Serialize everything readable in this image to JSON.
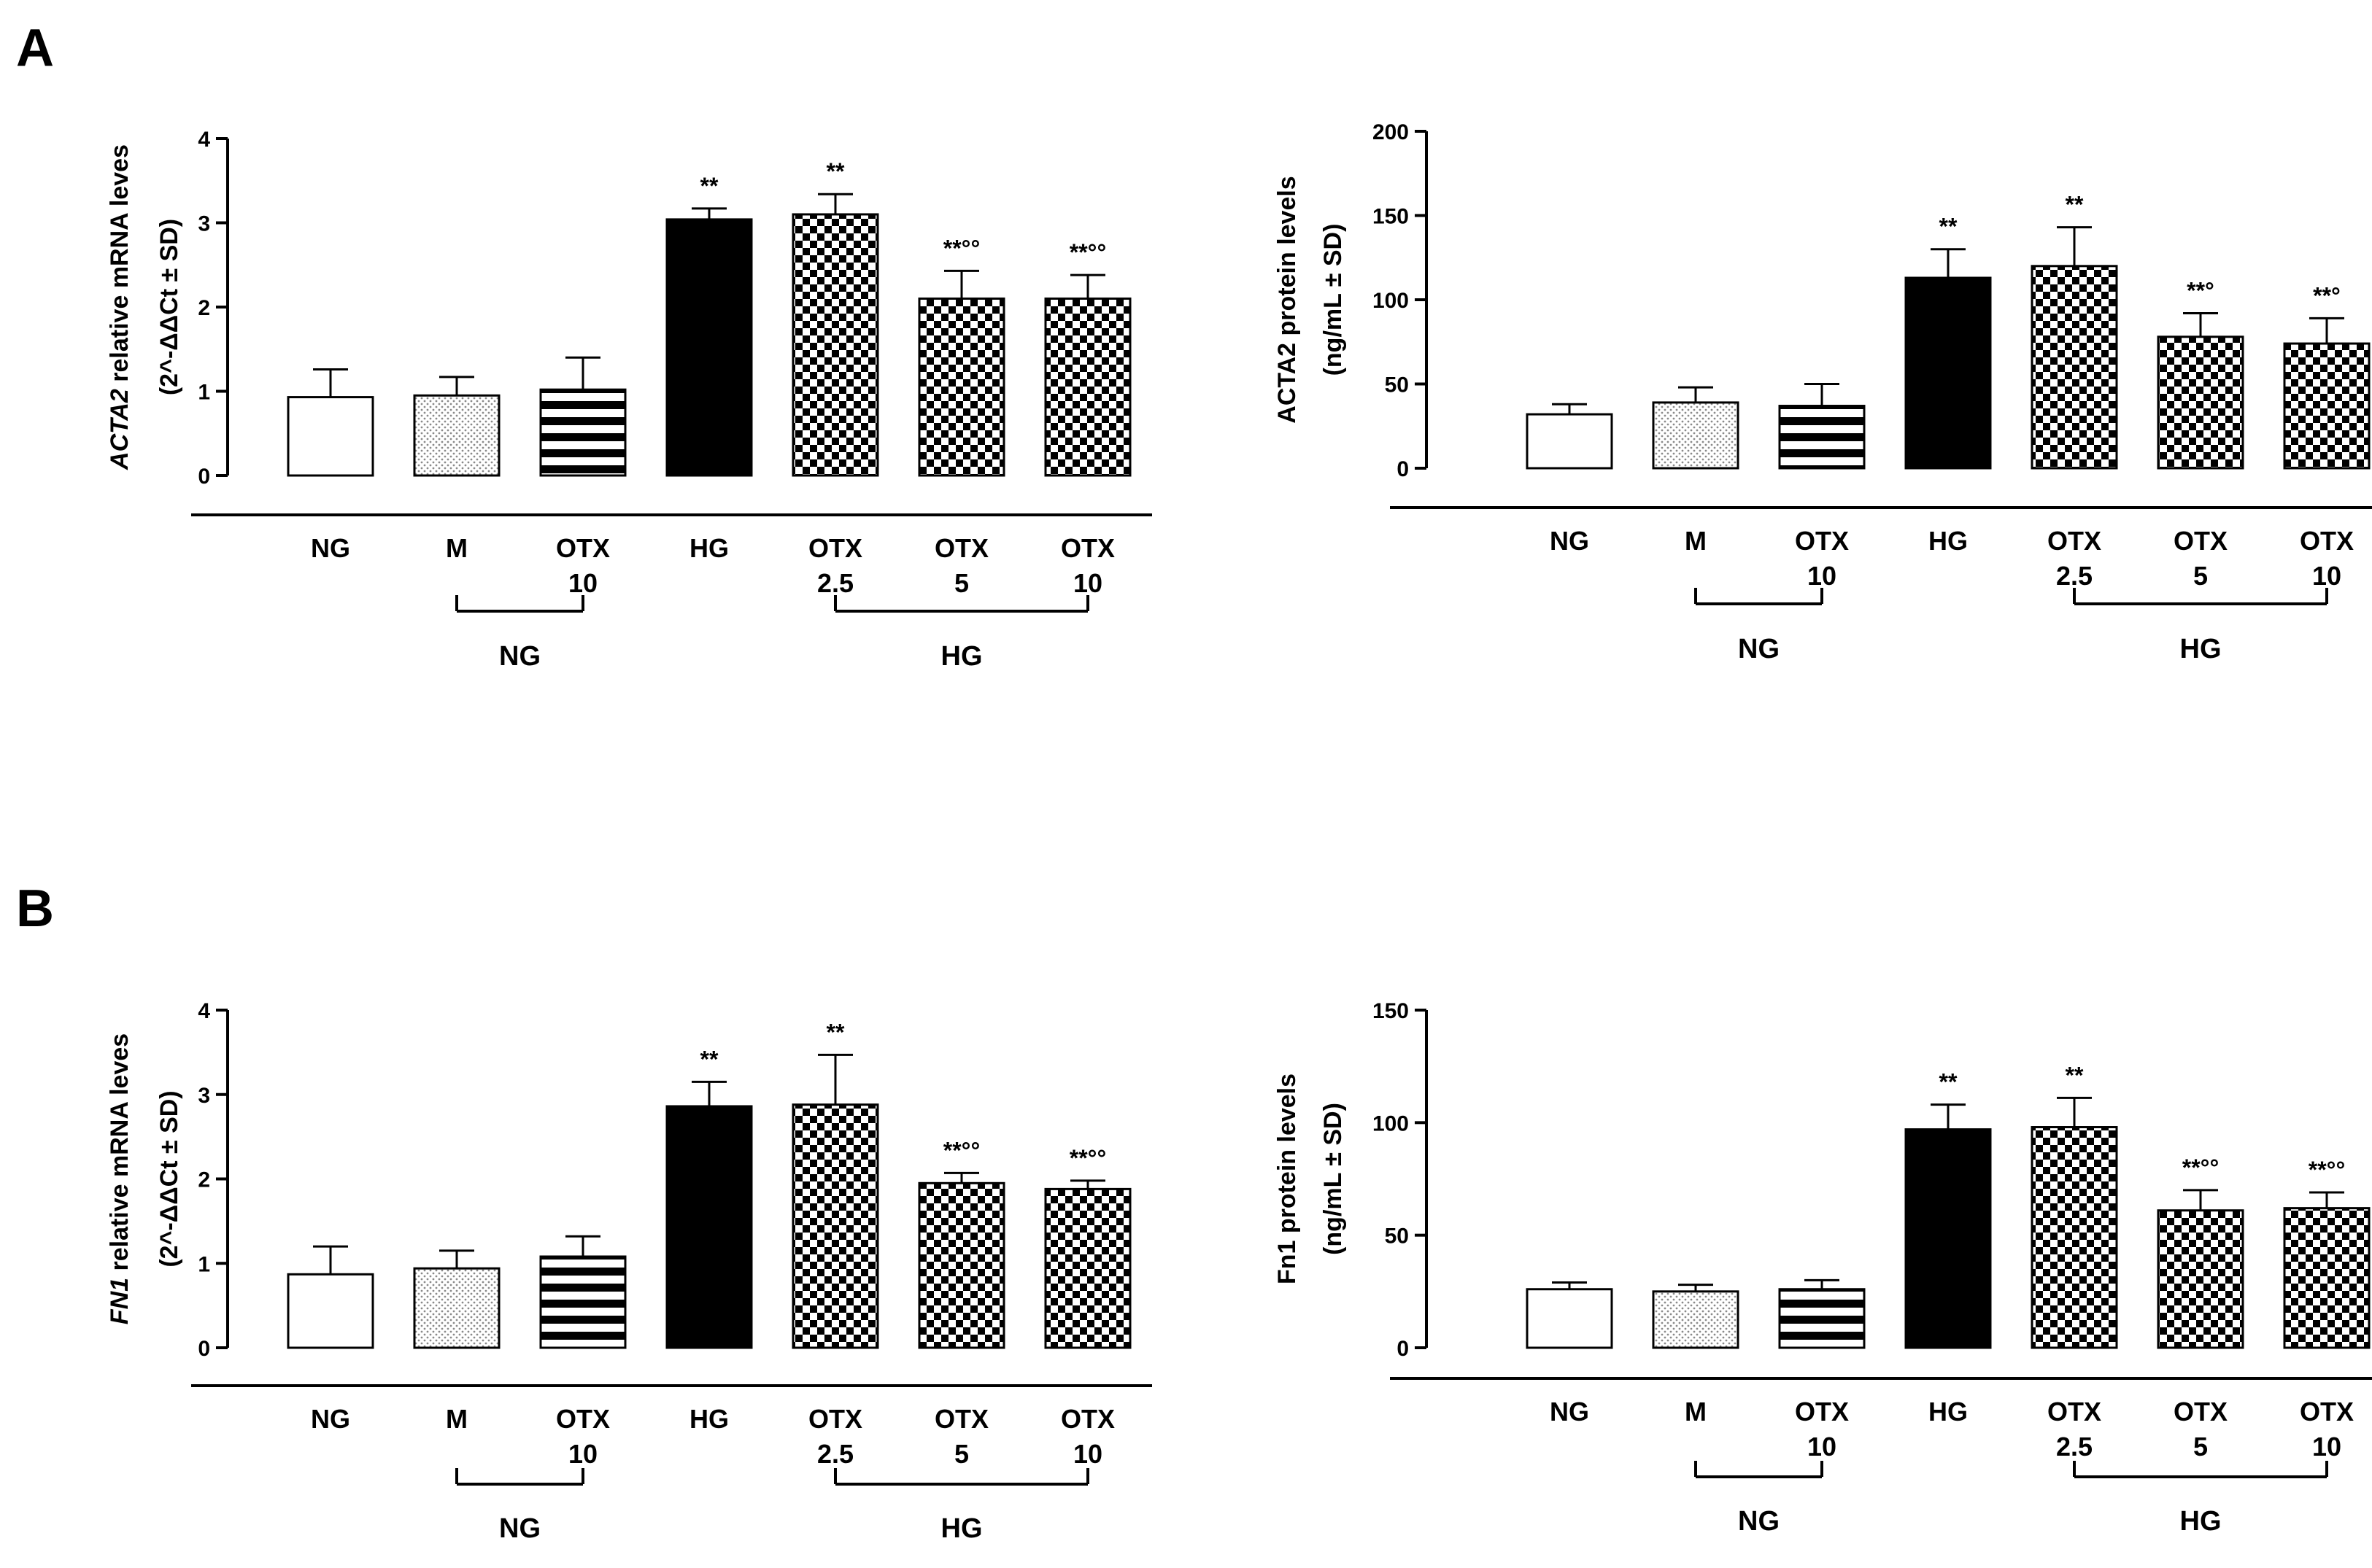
{
  "panels": [
    "A",
    "B"
  ],
  "patterns": {
    "empty": "#ffffff",
    "dots": "#c8c8c8",
    "hstripes": "#000000",
    "solid": "#000000",
    "checker": "#000000"
  },
  "chart_data": [
    {
      "type": "bar",
      "panel": "A",
      "ylabel_italic": "ACTA2",
      "ylabel_rest": " relative mRNA leves",
      "ylabel2": "(2^-ΔΔCt ± SD)",
      "ylim": [
        0,
        4
      ],
      "yticks": [
        0,
        1,
        2,
        3,
        4
      ],
      "categories": [
        {
          "line1": "NG",
          "line2": ""
        },
        {
          "line1": "M",
          "line2": ""
        },
        {
          "line1": "OTX",
          "line2": "10"
        },
        {
          "line1": "HG",
          "line2": ""
        },
        {
          "line1": "OTX",
          "line2": "2.5"
        },
        {
          "line1": "OTX",
          "line2": "5"
        },
        {
          "line1": "OTX",
          "line2": "10"
        }
      ],
      "values": [
        0.93,
        0.95,
        1.02,
        3.04,
        3.1,
        2.1,
        2.1
      ],
      "errors": [
        0.33,
        0.22,
        0.38,
        0.13,
        0.24,
        0.33,
        0.28
      ],
      "significance": [
        "",
        "",
        "",
        "**",
        "**",
        "**°°",
        "**°°"
      ],
      "groups": [
        {
          "label": "NG",
          "from": 1,
          "to": 2
        },
        {
          "label": "HG",
          "from": 4,
          "to": 6
        }
      ],
      "patterns": [
        "empty",
        "dots",
        "hstripes",
        "solid",
        "checker",
        "checker",
        "checker"
      ]
    },
    {
      "type": "bar",
      "panel": "A",
      "ylabel_italic": "",
      "ylabel_rest": "ACTA2 protein levels",
      "ylabel2": "(ng/mL ± SD)",
      "ylim": [
        0,
        200
      ],
      "yticks": [
        0,
        50,
        100,
        150,
        200
      ],
      "categories": [
        {
          "line1": "NG",
          "line2": ""
        },
        {
          "line1": "M",
          "line2": ""
        },
        {
          "line1": "OTX",
          "line2": "10"
        },
        {
          "line1": "HG",
          "line2": ""
        },
        {
          "line1": "OTX",
          "line2": "2.5"
        },
        {
          "line1": "OTX",
          "line2": "5"
        },
        {
          "line1": "OTX",
          "line2": "10"
        }
      ],
      "values": [
        32,
        39,
        37,
        113,
        120,
        78,
        74
      ],
      "errors": [
        6,
        9,
        13,
        17,
        23,
        14,
        15
      ],
      "significance": [
        "",
        "",
        "",
        "**",
        "**",
        "**°",
        "**°"
      ],
      "groups": [
        {
          "label": "NG",
          "from": 1,
          "to": 2
        },
        {
          "label": "HG",
          "from": 4,
          "to": 6
        }
      ],
      "patterns": [
        "empty",
        "dots",
        "hstripes",
        "solid",
        "checker",
        "checker",
        "checker"
      ]
    },
    {
      "type": "bar",
      "panel": "B",
      "ylabel_italic": "FN1",
      "ylabel_rest": " relative mRNA leves",
      "ylabel2": "(2^-ΔΔCt ± SD)",
      "ylim": [
        0,
        4
      ],
      "yticks": [
        0,
        1,
        2,
        3,
        4
      ],
      "categories": [
        {
          "line1": "NG",
          "line2": ""
        },
        {
          "line1": "M",
          "line2": ""
        },
        {
          "line1": "OTX",
          "line2": "10"
        },
        {
          "line1": "HG",
          "line2": ""
        },
        {
          "line1": "OTX",
          "line2": "2.5"
        },
        {
          "line1": "OTX",
          "line2": "5"
        },
        {
          "line1": "OTX",
          "line2": "10"
        }
      ],
      "values": [
        0.87,
        0.94,
        1.08,
        2.86,
        2.88,
        1.95,
        1.88
      ],
      "errors": [
        0.33,
        0.21,
        0.24,
        0.29,
        0.59,
        0.12,
        0.1
      ],
      "significance": [
        "",
        "",
        "",
        "**",
        "**",
        "**°°",
        "**°°"
      ],
      "groups": [
        {
          "label": "NG",
          "from": 1,
          "to": 2
        },
        {
          "label": "HG",
          "from": 4,
          "to": 6
        }
      ],
      "patterns": [
        "empty",
        "dots",
        "hstripes",
        "solid",
        "checker",
        "checker",
        "checker"
      ]
    },
    {
      "type": "bar",
      "panel": "B",
      "ylabel_italic": "",
      "ylabel_rest": "Fn1 protein levels",
      "ylabel2": "(ng/mL ± SD)",
      "ylim": [
        0,
        150
      ],
      "yticks": [
        0,
        50,
        100,
        150
      ],
      "categories": [
        {
          "line1": "NG",
          "line2": ""
        },
        {
          "line1": "M",
          "line2": ""
        },
        {
          "line1": "OTX",
          "line2": "10"
        },
        {
          "line1": "HG",
          "line2": ""
        },
        {
          "line1": "OTX",
          "line2": "2.5"
        },
        {
          "line1": "OTX",
          "line2": "5"
        },
        {
          "line1": "OTX",
          "line2": "10"
        }
      ],
      "values": [
        26,
        25,
        26,
        97,
        98,
        61,
        62
      ],
      "errors": [
        3,
        3,
        4,
        11,
        13,
        9,
        7
      ],
      "significance": [
        "",
        "",
        "",
        "**",
        "**",
        "**°°",
        "**°°"
      ],
      "groups": [
        {
          "label": "NG",
          "from": 1,
          "to": 2
        },
        {
          "label": "HG",
          "from": 4,
          "to": 6
        }
      ],
      "patterns": [
        "empty",
        "dots",
        "hstripes",
        "solid",
        "checker",
        "checker",
        "checker"
      ]
    }
  ]
}
